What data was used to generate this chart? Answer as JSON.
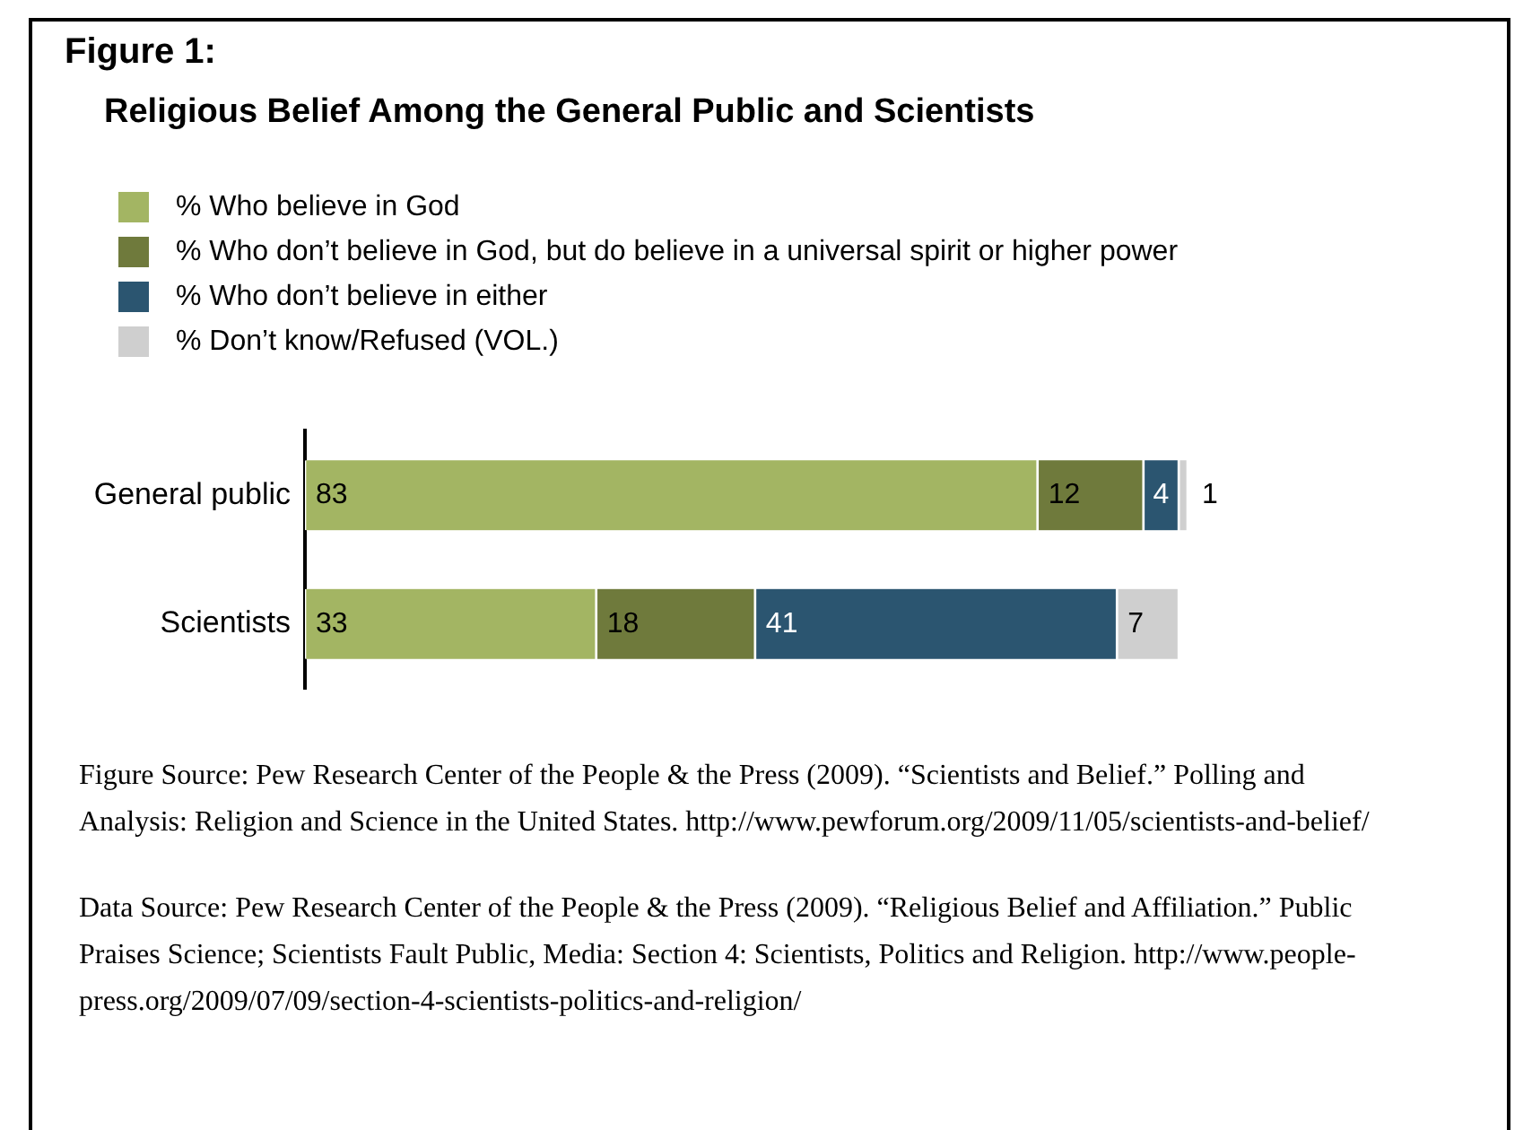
{
  "chart_data": {
    "type": "bar",
    "orientation": "horizontal",
    "stacked": true,
    "title": "Figure 1:",
    "subtitle": "Religious Belief Among the General Public and Scientists",
    "categories": [
      "General public",
      "Scientists"
    ],
    "series": [
      {
        "name": "% Who believe in God",
        "color": "#a3b563",
        "values": [
          83,
          33
        ]
      },
      {
        "name": "% Who don’t believe in God, but do believe in a universal spirit or higher power",
        "color": "#6f7a3c",
        "values": [
          12,
          18
        ]
      },
      {
        "name": "% Who don’t believe in either",
        "color": "#2b5570",
        "values": [
          4,
          41
        ]
      },
      {
        "name": "% Don’t know/Refused (VOL.)",
        "color": "#cfcfcf",
        "values": [
          1,
          7
        ]
      }
    ],
    "xlim": [
      0,
      100
    ],
    "data_labels": true,
    "tick_labels": "y",
    "legend": "top left",
    "annotations": [
      "Figure Source: Pew Research Center of the People & the Press (2009). “Scientists and Belief.” Polling and Analysis: Religion and Science in the United States. http://www.pewforum.org/2009/11/05/scientists-and-belief/",
      "Data Source: Pew Research Center of the People & the Press (2009). “Religious Belief and Affiliation.” Public Praises Science; Scientists Fault Public, Media: Section 4: Scientists, Politics and Religion. http://www.people-press.org/2009/07/09/section-4-scientists-politics-and-religion/"
    ]
  }
}
